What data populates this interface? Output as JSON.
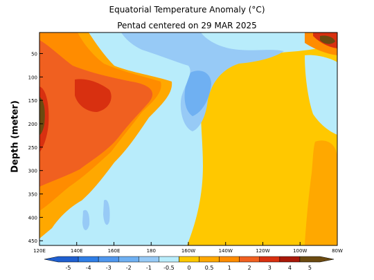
{
  "chart_data": {
    "type": "heatmap",
    "title": "Equatorial Temperature Anomaly (°C)",
    "subtitle": "Pentad centered on 29 MAR 2025",
    "ylabel": "Depth (meter)",
    "xlabel": "",
    "x_ticks": [
      "120E",
      "140E",
      "160E",
      "180",
      "160W",
      "140W",
      "120W",
      "100W",
      "80W"
    ],
    "y_ticks": [
      50,
      100,
      150,
      200,
      250,
      300,
      350,
      400,
      450
    ],
    "ylim": [
      460,
      5
    ],
    "x_range_deg_east": [
      120,
      280
    ],
    "colorbar": {
      "ticks": [
        "-5",
        "-4",
        "-3",
        "-2",
        "-1",
        "-0.5",
        "0",
        "0.5",
        "1",
        "2",
        "3",
        "4",
        "5"
      ],
      "colors": [
        "#1f5fd0",
        "#2f7ee6",
        "#4f97ee",
        "#6fb0f2",
        "#97caf6",
        "#b8ecfb",
        "#ffc800",
        "#ffa800",
        "#ff8c00",
        "#f06020",
        "#d83010",
        "#a81808",
        "#6b4a10"
      ]
    },
    "regions": [
      {
        "area": "120E-160E, 30-340 m",
        "anomaly": "1 to 2"
      },
      {
        "area": "125E-155E, 110-200 m",
        "anomaly": "2 to 4"
      },
      {
        "area": "165E-160W, 5-420 m",
        "anomaly": "0 to -0.5"
      },
      {
        "area": "170E-140W, 20-100 m",
        "anomaly": "-0.5 to -1"
      },
      {
        "area": "175E-150W, 100-200 m",
        "anomaly": "-1 to -2"
      },
      {
        "area": "160W-80W, 100-460 m",
        "anomaly": "0 to 0.5"
      },
      {
        "area": "95W-80W, 5-40 m",
        "anomaly": "2 to 5"
      }
    ]
  },
  "colors": {
    "frame": "#000000",
    "background": "#ffffff"
  }
}
